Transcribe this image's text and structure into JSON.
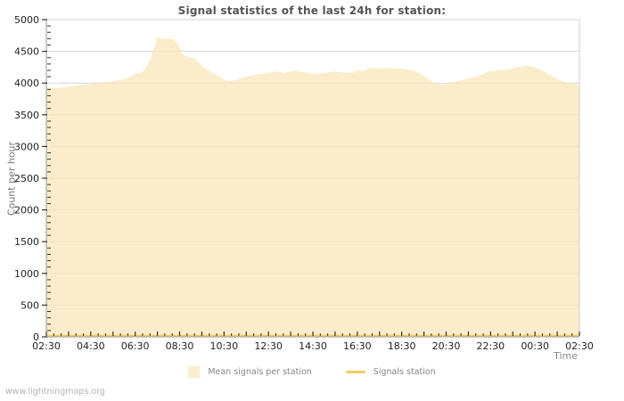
{
  "watermark": "www.lightningmaps.org",
  "chart_data": {
    "type": "area",
    "title": "Signal statistics of the last 24h for station:",
    "xlabel": "Time",
    "ylabel": "Count per hour",
    "ylim": [
      0,
      5000
    ],
    "ytick_step": 500,
    "ytick_minor_step": 100,
    "x_hours_range": [
      0,
      24
    ],
    "x_label_every_hours": 2,
    "x_minor_tick_hours": 0.3333,
    "x_tick_labels": [
      "02:30",
      "04:30",
      "06:30",
      "08:30",
      "10:30",
      "12:30",
      "14:30",
      "16:30",
      "18:30",
      "20:30",
      "22:30",
      "00:30",
      "02:30"
    ],
    "grid": "horizontal",
    "legend_position": "bottom-center",
    "colors": {
      "area_fill": "rgba(249,228,183,0.72)",
      "legend_area_swatch": "#faedce",
      "signals_line": "#f2ce63",
      "gridline": "#d6d6d6",
      "axis": "#999999",
      "right_border": "#cfcfcf",
      "tick": "#333333",
      "tick_text": "#1f1f1f"
    },
    "series": [
      {
        "name": "Mean signals per station",
        "type": "area",
        "points": [
          [
            0,
            3930
          ],
          [
            0.5,
            3920
          ],
          [
            1,
            3945
          ],
          [
            1.5,
            3960
          ],
          [
            2,
            3985
          ],
          [
            2.5,
            4010
          ],
          [
            3,
            4030
          ],
          [
            3.5,
            4060
          ],
          [
            3.8,
            4100
          ],
          [
            4,
            4150
          ],
          [
            4.3,
            4160
          ],
          [
            4.5,
            4250
          ],
          [
            4.7,
            4400
          ],
          [
            4.9,
            4620
          ],
          [
            5.0,
            4730
          ],
          [
            5.15,
            4700
          ],
          [
            5.5,
            4700
          ],
          [
            5.75,
            4690
          ],
          [
            5.95,
            4600
          ],
          [
            6.1,
            4480
          ],
          [
            6.3,
            4410
          ],
          [
            6.7,
            4395
          ],
          [
            6.9,
            4300
          ],
          [
            7.1,
            4250
          ],
          [
            7.4,
            4180
          ],
          [
            7.7,
            4120
          ],
          [
            8.0,
            4060
          ],
          [
            8.2,
            4030
          ],
          [
            8.5,
            4045
          ],
          [
            8.8,
            4080
          ],
          [
            9.2,
            4115
          ],
          [
            9.6,
            4140
          ],
          [
            10,
            4160
          ],
          [
            10.4,
            4185
          ],
          [
            10.7,
            4160
          ],
          [
            11.2,
            4195
          ],
          [
            11.6,
            4170
          ],
          [
            12,
            4145
          ],
          [
            12.4,
            4155
          ],
          [
            13,
            4180
          ],
          [
            13.4,
            4160
          ],
          [
            13.8,
            4160
          ],
          [
            14,
            4200
          ],
          [
            14.3,
            4190
          ],
          [
            14.6,
            4245
          ],
          [
            15,
            4230
          ],
          [
            15.4,
            4240
          ],
          [
            15.8,
            4230
          ],
          [
            16.2,
            4215
          ],
          [
            16.6,
            4190
          ],
          [
            16.9,
            4130
          ],
          [
            17.2,
            4065
          ],
          [
            17.5,
            4000
          ],
          [
            17.8,
            3975
          ],
          [
            18.1,
            3990
          ],
          [
            18.5,
            4030
          ],
          [
            18.9,
            4060
          ],
          [
            19.3,
            4095
          ],
          [
            19.7,
            4150
          ],
          [
            20,
            4190
          ],
          [
            20.4,
            4200
          ],
          [
            20.8,
            4215
          ],
          [
            21.2,
            4250
          ],
          [
            21.6,
            4270
          ],
          [
            21.9,
            4260
          ],
          [
            22.2,
            4220
          ],
          [
            22.5,
            4160
          ],
          [
            22.8,
            4100
          ],
          [
            23.1,
            4050
          ],
          [
            23.4,
            4010
          ],
          [
            23.7,
            3990
          ],
          [
            24,
            3985
          ]
        ]
      },
      {
        "name": "Signals station",
        "type": "line",
        "points": [
          [
            0,
            20
          ],
          [
            24,
            20
          ]
        ]
      }
    ]
  }
}
